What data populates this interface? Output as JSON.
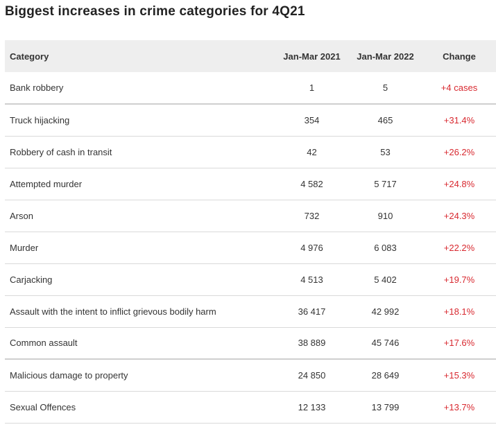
{
  "title": "Biggest increases in crime categories for 4Q21",
  "chart_data": {
    "type": "table",
    "columns": [
      "Category",
      "Jan-Mar 2021",
      "Jan-Mar 2022",
      "Change"
    ],
    "rows": [
      {
        "category": "Bank robbery",
        "y2021": "1",
        "y2022": "5",
        "change": "+4 cases"
      },
      {
        "category": "Truck hijacking",
        "y2021": "354",
        "y2022": "465",
        "change": "+31.4%"
      },
      {
        "category": "Robbery of cash in transit",
        "y2021": "42",
        "y2022": "53",
        "change": "+26.2%"
      },
      {
        "category": "Attempted murder",
        "y2021": "4 582",
        "y2022": "5 717",
        "change": "+24.8%"
      },
      {
        "category": "Arson",
        "y2021": "732",
        "y2022": "910",
        "change": "+24.3%"
      },
      {
        "category": "Murder",
        "y2021": "4 976",
        "y2022": "6 083",
        "change": "+22.2%"
      },
      {
        "category": "Carjacking",
        "y2021": "4 513",
        "y2022": "5 402",
        "change": "+19.7%"
      },
      {
        "category": "Assault with the intent to inflict grievous bodily harm",
        "y2021": "36 417",
        "y2022": "42 992",
        "change": "+18.1%"
      },
      {
        "category": "Common assault",
        "y2021": "38 889",
        "y2022": "45 746",
        "change": "+17.6%"
      },
      {
        "category": "Malicious damage to property",
        "y2021": "24 850",
        "y2022": "28 649",
        "change": "+15.3%"
      },
      {
        "category": "Sexual Offences",
        "y2021": "12 133",
        "y2022": "13 799",
        "change": "+13.7%"
      }
    ],
    "colors": {
      "header_bg": "#eeeeee",
      "change_text": "#d8282f"
    }
  }
}
